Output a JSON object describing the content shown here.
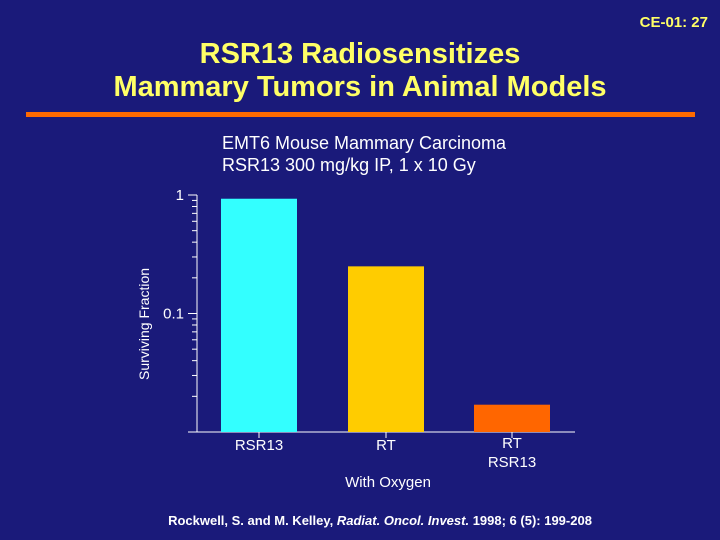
{
  "slide_id": "CE-01: 27",
  "title_line1": "RSR13 Radiosensitizes",
  "title_line2": "Mammary Tumors in Animal Models",
  "subtitle_line1": "EMT6 Mouse Mammary Carcinoma",
  "subtitle_line2": "RSR13 300 mg/kg IP, 1 x 10 Gy",
  "colors": {
    "background": "#1a1a7a",
    "title": "#ffff66",
    "rule": "#ff6a00",
    "bar_rsr13": "#33ffff",
    "bar_rt": "#ffcc00",
    "bar_rt_rsr13": "#ff6600"
  },
  "citation": {
    "prefix": "Rockwell, S. and M. Kelley, ",
    "journal": "Radiat. Oncol. Invest.",
    "suffix": " 1998; 6 (5): 199-208"
  },
  "chart_data": {
    "type": "bar",
    "yscale": "log",
    "title": "",
    "ylabel": "Surviving Fraction",
    "xlabel": "With Oxygen",
    "ylim": [
      0.01,
      1
    ],
    "ytick_labels": [
      "1",
      "0.1"
    ],
    "categories": [
      "RSR13",
      "RT",
      "RT RSR13"
    ],
    "category_lines": [
      [
        "RSR13"
      ],
      [
        "RT"
      ],
      [
        "RT",
        "RSR13"
      ]
    ],
    "values": [
      0.93,
      0.25,
      0.017
    ],
    "bar_colors": [
      "#33ffff",
      "#ffcc00",
      "#ff6600"
    ]
  }
}
